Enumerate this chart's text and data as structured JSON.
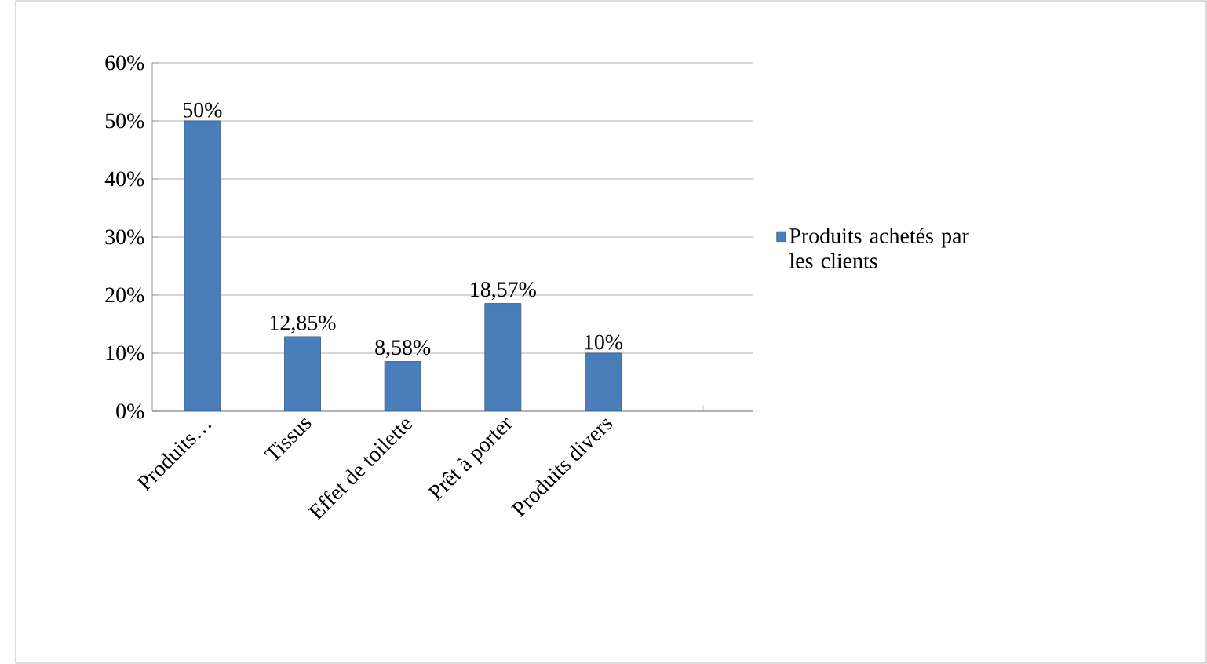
{
  "chart_data": {
    "type": "bar",
    "categories": [
      "Produits…",
      "Tissus",
      "Effet de toilette",
      "Prêt à porter",
      "Produits divers",
      null
    ],
    "series": [
      {
        "name": "Produits achetés par les clients",
        "color": "#4a7ebb",
        "values": [
          50,
          12.85,
          8.58,
          18.57,
          10,
          null
        ],
        "value_labels": [
          "50%",
          "12,85%",
          "8,58%",
          "18,57%",
          "10%",
          null
        ]
      }
    ],
    "ylim": [
      0,
      60
    ],
    "yticks": [
      {
        "value": 0,
        "label": "0%"
      },
      {
        "value": 10,
        "label": "10%"
      },
      {
        "value": 20,
        "label": "20%"
      },
      {
        "value": 30,
        "label": "30%"
      },
      {
        "value": 40,
        "label": "40%"
      },
      {
        "value": 50,
        "label": "50%"
      },
      {
        "value": 60,
        "label": "60%"
      }
    ],
    "grid": "y",
    "legend": "right"
  }
}
